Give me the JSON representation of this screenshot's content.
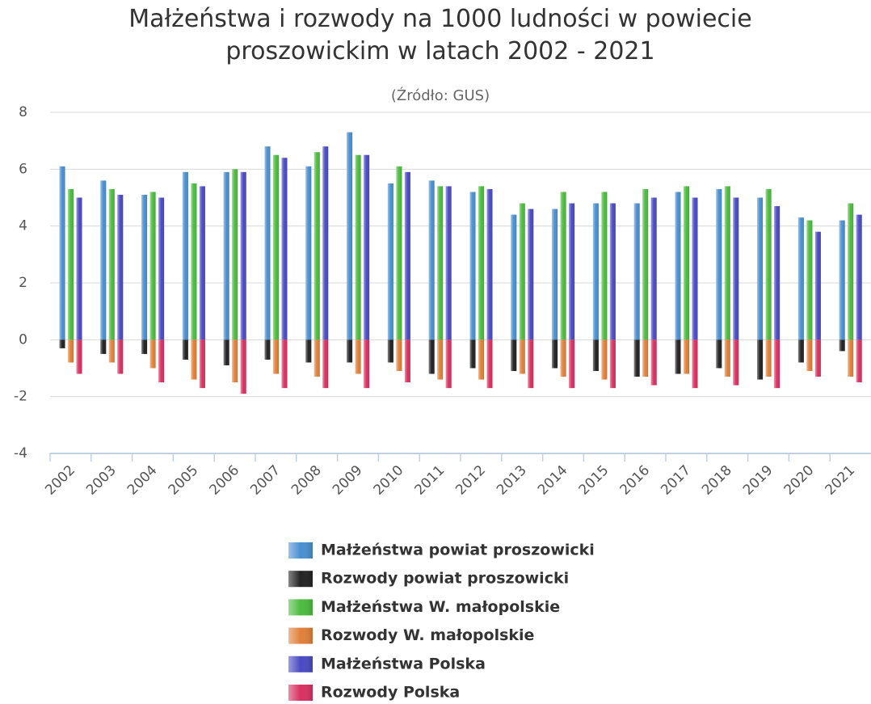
{
  "chart_data": {
    "type": "bar",
    "title": "Małżeństwa i rozwody na 1000 ludności w powiecie proszowickim w latach 2002 - 2021",
    "subtitle": "(Źródło: GUS)",
    "categories": [
      "2002",
      "2003",
      "2004",
      "2005",
      "2006",
      "2007",
      "2008",
      "2009",
      "2010",
      "2011",
      "2012",
      "2013",
      "2014",
      "2015",
      "2016",
      "2017",
      "2018",
      "2019",
      "2020",
      "2021"
    ],
    "series": [
      {
        "name": "Małżeństwa powiat proszowicki",
        "color": "#4a8fd1",
        "values": [
          6.1,
          5.6,
          5.1,
          5.9,
          5.9,
          6.8,
          6.1,
          7.3,
          5.5,
          5.6,
          5.2,
          4.4,
          4.6,
          4.8,
          4.8,
          5.2,
          5.3,
          5.0,
          4.3,
          4.2
        ]
      },
      {
        "name": "Rozwody powiat proszowicki",
        "color": "#222222",
        "values": [
          -0.3,
          -0.5,
          -0.5,
          -0.7,
          -0.9,
          -0.7,
          -0.8,
          -0.8,
          -0.8,
          -1.2,
          -1.0,
          -1.1,
          -1.0,
          -1.1,
          -1.3,
          -1.2,
          -1.0,
          -1.4,
          -0.8,
          -0.4
        ]
      },
      {
        "name": "Małżeństwa W. małopolskie",
        "color": "#4cbb3f",
        "values": [
          5.3,
          5.3,
          5.2,
          5.5,
          6.0,
          6.5,
          6.6,
          6.5,
          6.1,
          5.4,
          5.4,
          4.8,
          5.2,
          5.2,
          5.3,
          5.4,
          5.4,
          5.3,
          4.2,
          4.8
        ]
      },
      {
        "name": "Rozwody W. małopolskie",
        "color": "#e0803a",
        "values": [
          -0.8,
          -0.8,
          -1.0,
          -1.4,
          -1.5,
          -1.2,
          -1.3,
          -1.2,
          -1.1,
          -1.4,
          -1.4,
          -1.2,
          -1.3,
          -1.4,
          -1.3,
          -1.2,
          -1.3,
          -1.3,
          -1.1,
          -1.3
        ]
      },
      {
        "name": "Małżeństwa Polska",
        "color": "#4a4ac4",
        "values": [
          5.0,
          5.1,
          5.0,
          5.4,
          5.9,
          6.4,
          6.8,
          6.5,
          5.9,
          5.4,
          5.3,
          4.6,
          4.8,
          4.8,
          5.0,
          5.0,
          5.0,
          4.7,
          3.8,
          4.4
        ]
      },
      {
        "name": "Rozwody Polska",
        "color": "#d93060",
        "values": [
          -1.2,
          -1.2,
          -1.5,
          -1.7,
          -1.9,
          -1.7,
          -1.7,
          -1.7,
          -1.5,
          -1.7,
          -1.7,
          -1.7,
          -1.7,
          -1.7,
          -1.6,
          -1.7,
          -1.6,
          -1.7,
          -1.3,
          -1.5
        ]
      }
    ],
    "ylim": [
      -4,
      8
    ],
    "yticks": [
      -4,
      -2,
      0,
      2,
      4,
      6,
      8
    ],
    "grid": true
  }
}
